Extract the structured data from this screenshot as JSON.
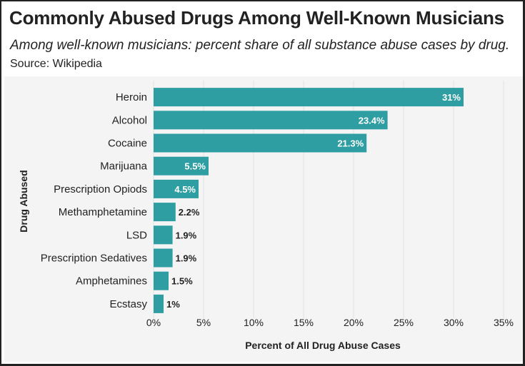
{
  "header": {
    "title": "Commonly Abused Drugs Among Well-Known Musicians",
    "subtitle": "Among well-known musicians: percent share of all substance abuse cases by drug.",
    "source": "Source: Wikipedia"
  },
  "colors": {
    "bar": "#2f9ea3",
    "inside_label": "#ffffff",
    "outside_label": "#222222",
    "grid": "#e2e2e2",
    "panel": "#f4f4f4"
  },
  "chart_data": {
    "type": "bar",
    "orientation": "horizontal",
    "title": "Commonly Abused Drugs Among Well-Known Musicians",
    "subtitle": "Among well-known musicians: percent share of all substance abuse cases by drug.",
    "xlabel": "Percent of All Drug Abuse Cases",
    "ylabel": "Drug Abused",
    "categories": [
      "Heroin",
      "Alcohol",
      "Cocaine",
      "Marijuana",
      "Prescription Opiods",
      "Methamphetamine",
      "LSD",
      "Prescription Sedatives",
      "Amphetamines",
      "Ecstasy"
    ],
    "values": [
      31,
      23.4,
      21.3,
      5.5,
      4.5,
      2.2,
      1.9,
      1.9,
      1.5,
      1
    ],
    "value_labels": [
      "31%",
      "23.4%",
      "21.3%",
      "5.5%",
      "4.5%",
      "2.2%",
      "1.9%",
      "1.9%",
      "1.5%",
      "1%"
    ],
    "xlim": [
      0,
      35
    ],
    "xticks": [
      0,
      5,
      10,
      15,
      20,
      25,
      30,
      35
    ],
    "xtick_labels": [
      "0%",
      "5%",
      "10%",
      "15%",
      "20%",
      "25%",
      "30%",
      "35%"
    ],
    "grid": "vertical",
    "legend": "none"
  }
}
